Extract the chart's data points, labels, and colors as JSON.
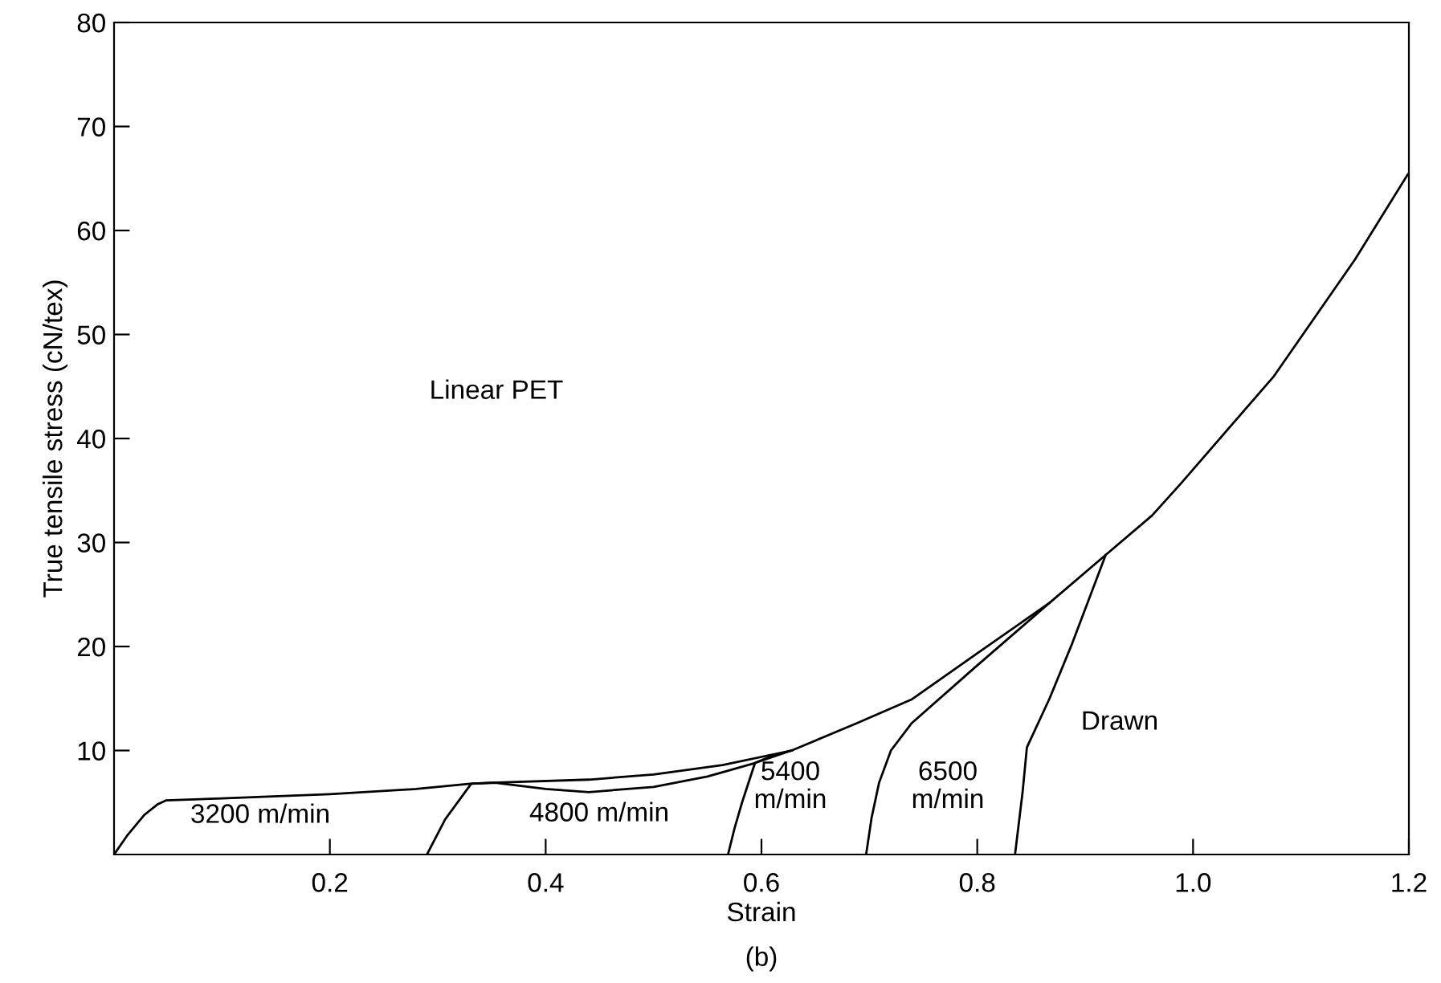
{
  "chart_data": {
    "type": "line",
    "xlabel": "Strain",
    "ylabel": "True tensile stress (cN/tex)",
    "xlim": [
      0,
      1.2
    ],
    "xticks": [
      0.2,
      0.4,
      0.6,
      0.8,
      {
        "value": 1.0,
        "label": "1.0"
      },
      1.2
    ],
    "ylim": [
      0,
      80
    ],
    "yticks": [
      10,
      20,
      30,
      40,
      50,
      60,
      70,
      80
    ],
    "grid": false,
    "legend": false,
    "marker": "none",
    "line_style": "solid",
    "series": [
      {
        "color": "#000000",
        "x": [
          0,
          0.012,
          0.028,
          0.04,
          0.048,
          0.1,
          0.2,
          0.28,
          0.33,
          0.35,
          0.44,
          0.5,
          0.564,
          0.628,
          0.688,
          0.739,
          0.798,
          0.867,
          0.919,
          0.962,
          0.989,
          1.075,
          1.15,
          1.199
        ],
        "values": [
          0,
          1.8,
          3.8,
          4.8,
          5.2,
          5.4,
          5.8,
          6.3,
          6.8,
          6.9,
          7.2,
          7.7,
          8.6,
          10.0,
          12.6,
          14.9,
          19.2,
          24.2,
          28.8,
          32.6,
          35.7,
          46,
          57.2,
          65.4
        ]
      },
      {
        "color": "#000000",
        "x": [
          0.29,
          0.307,
          0.331,
          0.353,
          0.4,
          0.44,
          0.5,
          0.55,
          0.594,
          0.628
        ],
        "values": [
          0,
          3.4,
          6.8,
          6.9,
          6.3,
          6.0,
          6.5,
          7.5,
          8.8,
          10.0
        ]
      },
      {
        "color": "#000000",
        "x": [
          0.569,
          0.575,
          0.582,
          0.594,
          0.61,
          0.628
        ],
        "values": [
          0,
          2.5,
          5,
          8.8,
          9.5,
          10.0
        ]
      },
      {
        "color": "#000000",
        "x": [
          0.697,
          0.702,
          0.709,
          0.72,
          0.739,
          0.798,
          0.867
        ],
        "values": [
          0,
          3.5,
          6.9,
          10.0,
          12.6,
          18.0,
          24.2
        ]
      },
      {
        "color": "#000000",
        "x": [
          0.835,
          0.842,
          0.846,
          0.867,
          0.888,
          0.919
        ],
        "values": [
          0,
          6.0,
          10.3,
          15.0,
          20.3,
          28.8
        ]
      }
    ],
    "annotations": [
      "3200 m/min",
      "4800 m/min",
      "5400\nm/min",
      "6500\nm/min",
      "Drawn",
      "Linear PET",
      "(b)"
    ]
  }
}
